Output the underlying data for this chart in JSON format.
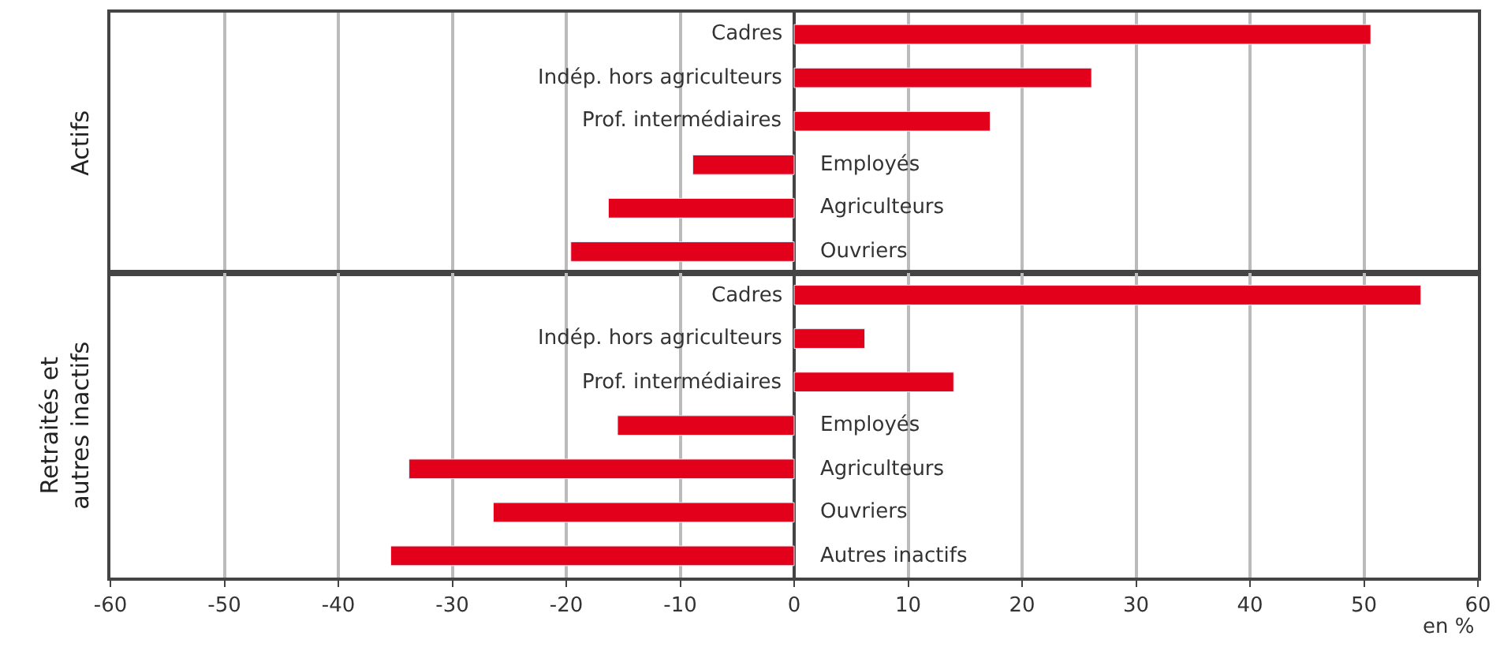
{
  "chart_data": [
    {
      "type": "bar",
      "orientation": "horizontal",
      "ylabel": "Actifs",
      "categories": [
        "Cadres",
        "Indép. hors agriculteurs",
        "Prof. intermédiaires",
        "Employés",
        "Agriculteurs",
        "Ouvriers"
      ],
      "series": [
        {
          "color": "#e2001a",
          "values": [
            50.6,
            26.1,
            17.2,
            -8.9,
            -16.3,
            -19.6
          ]
        }
      ],
      "xlim": [
        -60,
        60
      ],
      "xticks": [
        -60,
        -50,
        -40,
        -30,
        -20,
        -10,
        0,
        10,
        20,
        30,
        40,
        50,
        60
      ],
      "grid": "x",
      "tick_labels": "y"
    },
    {
      "type": "bar",
      "orientation": "horizontal",
      "ylabel": "Retraités et autres inactifs",
      "xlabel": "en %",
      "categories": [
        "Cadres",
        "Indép. hors agriculteurs",
        "Prof. intermédiaires",
        "Employés",
        "Agriculteurs",
        "Ouvriers",
        "Autres inactifs"
      ],
      "series": [
        {
          "color": "#e2001a",
          "values": [
            55.0,
            6.2,
            14.0,
            -15.5,
            -33.8,
            -26.4,
            -35.4
          ]
        }
      ],
      "xlim": [
        -60,
        60
      ],
      "xticks": [
        -60,
        -50,
        -40,
        -30,
        -20,
        -10,
        0,
        10,
        20,
        30,
        40,
        50,
        60
      ],
      "grid": "x"
    }
  ]
}
